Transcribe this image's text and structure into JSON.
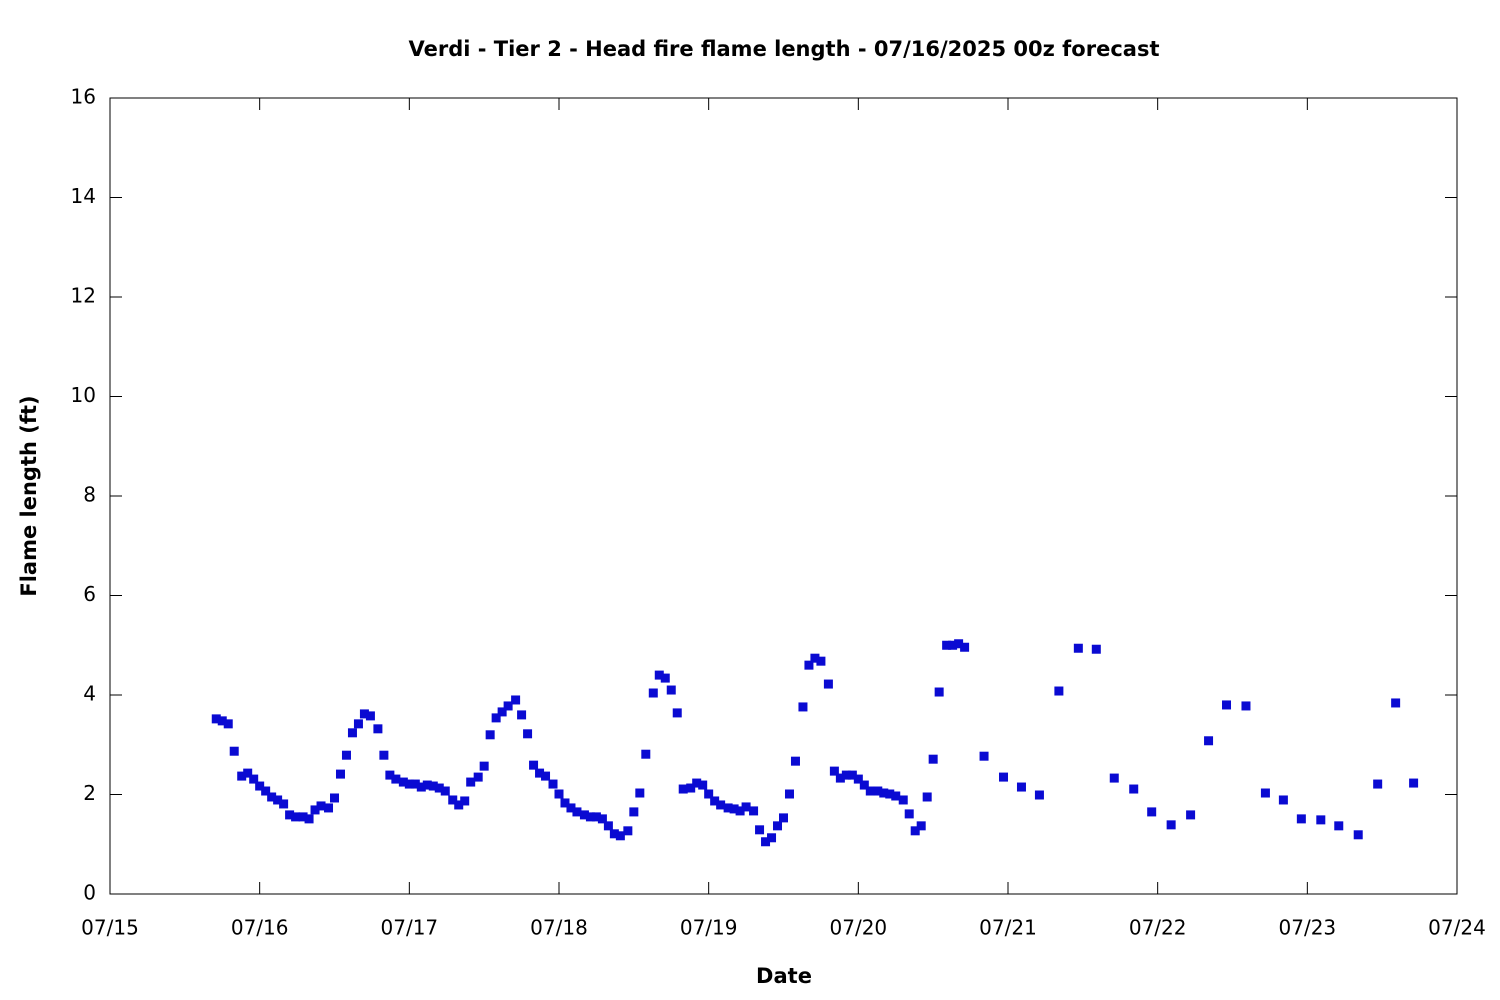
{
  "chart_data": {
    "type": "scatter",
    "title": "Verdi - Tier 2 - Head fire flame length - 07/16/2025 00z forecast",
    "x_label": "Date",
    "y_label": "Flame length (ft)",
    "color": "#0a0ad2",
    "xlim": [
      15,
      24
    ],
    "xticks": [
      {
        "value": 15,
        "label": "07/15"
      },
      {
        "value": 16,
        "label": "07/16"
      },
      {
        "value": 17,
        "label": "07/17"
      },
      {
        "value": 18,
        "label": "07/18"
      },
      {
        "value": 19,
        "label": "07/19"
      },
      {
        "value": 20,
        "label": "07/20"
      },
      {
        "value": 21,
        "label": "07/21"
      },
      {
        "value": 22,
        "label": "07/22"
      },
      {
        "value": 23,
        "label": "07/23"
      },
      {
        "value": 24,
        "label": "07/24"
      }
    ],
    "ylim": [
      0,
      16
    ],
    "yticks": [
      0,
      2,
      4,
      6,
      8,
      10,
      12,
      14,
      16
    ],
    "x": [
      15.71,
      15.75,
      15.79,
      15.83,
      15.88,
      15.92,
      15.96,
      16.0,
      16.04,
      16.08,
      16.12,
      16.16,
      16.2,
      16.24,
      16.29,
      16.33,
      16.37,
      16.41,
      16.46,
      16.5,
      16.54,
      16.58,
      16.62,
      16.66,
      16.7,
      16.74,
      16.79,
      16.83,
      16.87,
      16.91,
      16.96,
      17.0,
      17.04,
      17.08,
      17.12,
      17.16,
      17.2,
      17.24,
      17.29,
      17.33,
      17.37,
      17.41,
      17.46,
      17.5,
      17.54,
      17.58,
      17.62,
      17.66,
      17.71,
      17.75,
      17.79,
      17.83,
      17.87,
      17.91,
      17.96,
      18.0,
      18.04,
      18.08,
      18.12,
      18.17,
      18.21,
      18.25,
      18.29,
      18.33,
      18.37,
      18.41,
      18.46,
      18.5,
      18.54,
      18.58,
      18.63,
      18.67,
      18.71,
      18.75,
      18.79,
      18.83,
      18.88,
      18.92,
      18.96,
      19.0,
      19.04,
      19.08,
      19.13,
      19.17,
      19.21,
      19.25,
      19.3,
      19.34,
      19.38,
      19.42,
      19.46,
      19.5,
      19.54,
      19.58,
      19.63,
      19.67,
      19.71,
      19.75,
      19.8,
      19.84,
      19.88,
      19.92,
      19.96,
      20.0,
      20.04,
      20.08,
      20.13,
      20.17,
      20.21,
      20.25,
      20.3,
      20.34,
      20.38,
      20.42,
      20.46,
      20.5,
      20.54,
      20.59,
      20.63,
      20.67,
      20.71,
      20.84,
      20.97,
      21.09,
      21.21,
      21.34,
      21.47,
      21.59,
      21.71,
      21.84,
      21.96,
      22.09,
      22.22,
      22.34,
      22.46,
      22.59,
      22.72,
      22.84,
      22.96,
      23.09,
      23.21,
      23.34,
      23.47,
      23.59,
      23.71
    ],
    "values": [
      3.52,
      3.48,
      3.42,
      2.87,
      2.37,
      2.43,
      2.31,
      2.17,
      2.07,
      1.95,
      1.89,
      1.81,
      1.59,
      1.55,
      1.55,
      1.51,
      1.69,
      1.77,
      1.73,
      1.93,
      2.41,
      2.79,
      3.24,
      3.42,
      3.62,
      3.58,
      3.32,
      2.79,
      2.39,
      2.31,
      2.25,
      2.21,
      2.21,
      2.15,
      2.19,
      2.17,
      2.13,
      2.07,
      1.89,
      1.79,
      1.87,
      2.25,
      2.35,
      2.57,
      3.2,
      3.54,
      3.66,
      3.78,
      3.9,
      3.6,
      3.22,
      2.59,
      2.43,
      2.37,
      2.21,
      2.01,
      1.83,
      1.73,
      1.65,
      1.59,
      1.55,
      1.55,
      1.51,
      1.37,
      1.21,
      1.17,
      1.27,
      1.65,
      2.03,
      2.81,
      4.04,
      4.4,
      4.34,
      4.1,
      3.64,
      2.11,
      2.13,
      2.23,
      2.19,
      2.01,
      1.87,
      1.79,
      1.73,
      1.71,
      1.67,
      1.75,
      1.67,
      1.29,
      1.05,
      1.13,
      1.37,
      1.53,
      2.01,
      2.67,
      3.76,
      4.6,
      4.74,
      4.68,
      4.22,
      2.47,
      2.33,
      2.39,
      2.39,
      2.31,
      2.19,
      2.07,
      2.07,
      2.03,
      2.01,
      1.97,
      1.89,
      1.61,
      1.27,
      1.37,
      1.95,
      2.71,
      4.06,
      5.0,
      5.0,
      5.03,
      4.96,
      2.77,
      2.35,
      2.15,
      1.99,
      4.08,
      4.94,
      4.92,
      2.33,
      2.11,
      1.65,
      1.39,
      1.59,
      3.08,
      3.8,
      3.78,
      2.03,
      1.89,
      1.51,
      1.49,
      1.37,
      1.19,
      2.21,
      3.84,
      2.23
    ]
  }
}
